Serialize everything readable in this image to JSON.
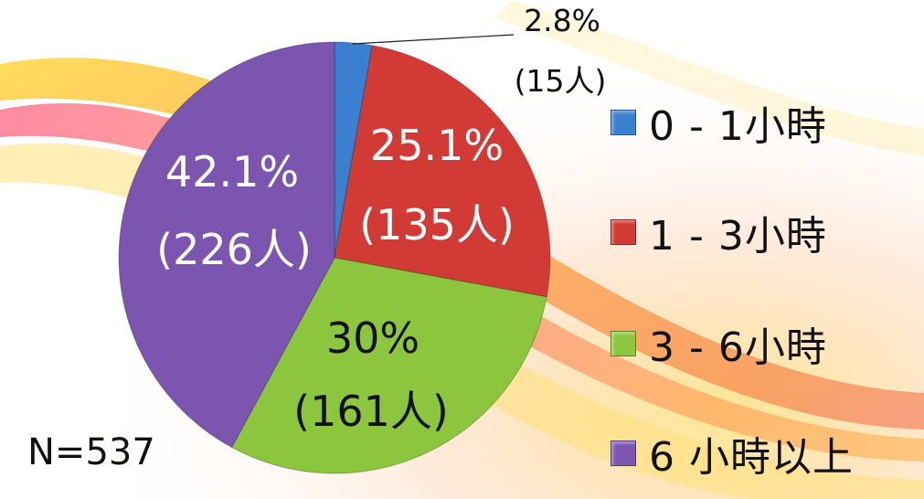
{
  "chart_data": {
    "type": "pie",
    "total_label": "N=537",
    "slices": [
      {
        "category": "0 - 1小時",
        "percent": 2.8,
        "percent_label": "2.8%",
        "count_label": "(15人)",
        "color": "#3a7fd0"
      },
      {
        "category": "1 - 3小時",
        "percent": 25.1,
        "percent_label": "25.1%",
        "count_label": "(135人)",
        "color": "#d23a36"
      },
      {
        "category": "3 - 6小時",
        "percent": 30,
        "percent_label": "30%",
        "count_label": "(161人)",
        "color": "#8cc63e"
      },
      {
        "category": "6 小時以上",
        "percent": 42.1,
        "percent_label": "42.1%",
        "count_label": "(226人)",
        "color": "#7b55b0"
      }
    ],
    "start_angle_degrees": 0,
    "direction": "clockwise",
    "legend_position": "right"
  }
}
